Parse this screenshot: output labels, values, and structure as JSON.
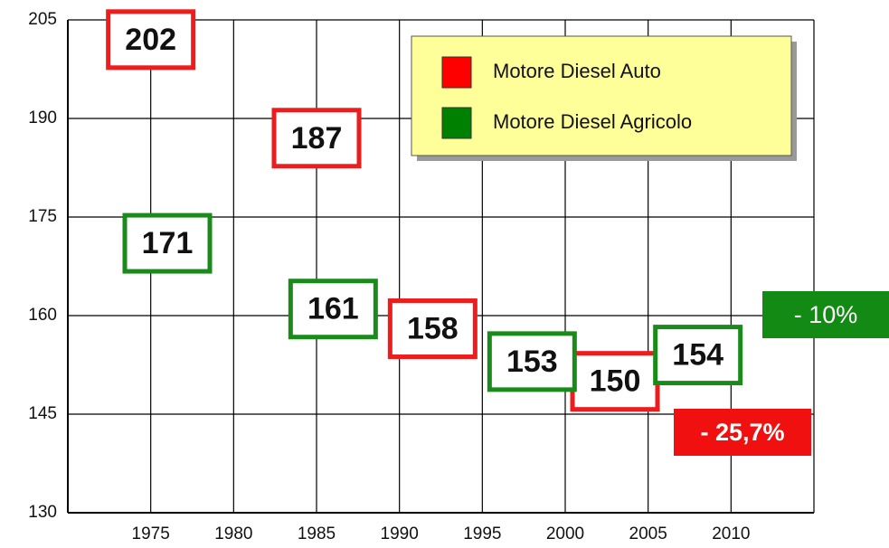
{
  "chart_data": {
    "type": "scatter",
    "xlim": [
      1970,
      2015
    ],
    "xticks": [
      1975,
      1980,
      1985,
      1990,
      1995,
      2000,
      2005,
      2010
    ],
    "ylim": [
      130,
      205
    ],
    "yticks": [
      130,
      145,
      160,
      175,
      190,
      205
    ],
    "grid": true,
    "legend": "upper right",
    "series": [
      {
        "name": "Motore Diesel Auto",
        "color": "#ee1c1c",
        "x": [
          1975,
          1985,
          1992,
          2003
        ],
        "values": [
          202,
          187,
          158,
          150
        ]
      },
      {
        "name": "Motore Diesel Agricolo",
        "color": "#1a8a1a",
        "x": [
          1976,
          1986,
          1998,
          2008
        ],
        "values": [
          171,
          161,
          153,
          154
        ]
      }
    ],
    "annotations": [
      {
        "text": "- 10%",
        "color": "#138a13"
      },
      {
        "text": "- 25,7%",
        "color": "#f01010"
      }
    ]
  }
}
